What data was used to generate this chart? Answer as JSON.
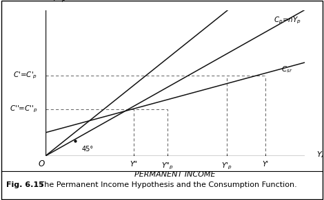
{
  "fig_caption_bold": "Fig. 6.15",
  "fig_caption_rest": " The Permanent Income Hypothesis and the Consumption Function.",
  "background_color": "#ffffff",
  "xlim": [
    0,
    10
  ],
  "ylim": [
    0,
    10
  ],
  "line_45_slope": 1.42,
  "Cp_slope": 1.0,
  "Csr_slope": 0.48,
  "Csr_intercept": 1.6,
  "y_C_prime": 5.5,
  "y_C_double_prime": 3.2,
  "x_Yprime": 8.5,
  "x_Yp_prime": 7.0,
  "x_Y_double_prime": 3.4,
  "x_Yp_double_prime": 4.7,
  "dashed_color": "#666666",
  "line_color": "#111111",
  "font_size": 8.5,
  "caption_fontsize": 8.0
}
